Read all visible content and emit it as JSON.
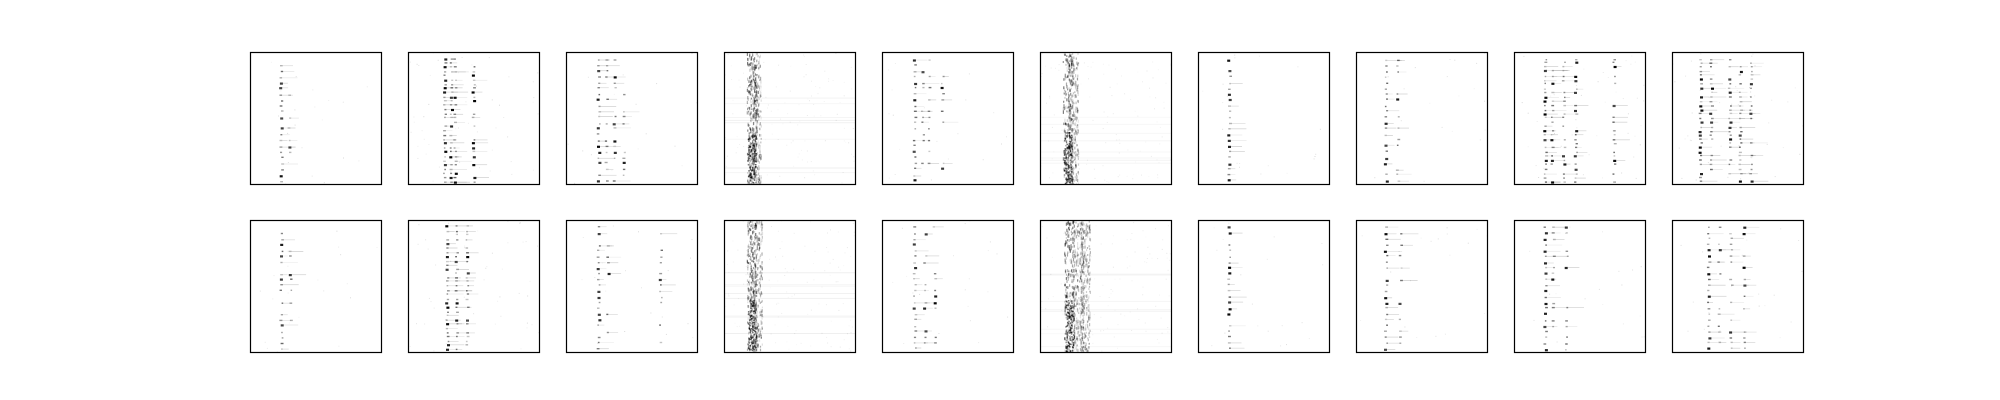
{
  "figure": {
    "rows": 2,
    "cols": 10,
    "background": "#ffffff",
    "frame_color": "#000000",
    "ink_color": "#000000"
  },
  "panels": [
    {
      "row": 0,
      "col": 0,
      "style": "sparse",
      "columns": [
        0.24,
        0.3
      ]
    },
    {
      "row": 0,
      "col": 1,
      "style": "dense",
      "columns": [
        0.28,
        0.33,
        0.36,
        0.5
      ]
    },
    {
      "row": 0,
      "col": 2,
      "style": "sparse",
      "columns": [
        0.25,
        0.31,
        0.37,
        0.44
      ]
    },
    {
      "row": 0,
      "col": 3,
      "style": "diffuse",
      "columns": [
        0.21,
        0.24
      ]
    },
    {
      "row": 0,
      "col": 4,
      "style": "sparse",
      "columns": [
        0.25,
        0.31,
        0.36,
        0.46
      ]
    },
    {
      "row": 0,
      "col": 5,
      "style": "diffuse",
      "columns": [
        0.21,
        0.25
      ]
    },
    {
      "row": 0,
      "col": 6,
      "style": "sparse",
      "columns": [
        0.24
      ]
    },
    {
      "row": 0,
      "col": 7,
      "style": "sparse",
      "columns": [
        0.23,
        0.32
      ]
    },
    {
      "row": 0,
      "col": 8,
      "style": "dense",
      "columns": [
        0.24,
        0.29,
        0.38,
        0.47,
        0.76
      ]
    },
    {
      "row": 0,
      "col": 9,
      "style": "dense",
      "columns": [
        0.22,
        0.3,
        0.44,
        0.52,
        0.6
      ]
    },
    {
      "row": 1,
      "col": 0,
      "style": "sparse",
      "columns": [
        0.24,
        0.31
      ]
    },
    {
      "row": 1,
      "col": 1,
      "style": "dense",
      "columns": [
        0.3,
        0.37,
        0.45
      ]
    },
    {
      "row": 1,
      "col": 2,
      "style": "sparse",
      "columns": [
        0.25,
        0.32,
        0.72
      ]
    },
    {
      "row": 1,
      "col": 3,
      "style": "diffuse",
      "columns": [
        0.21,
        0.25
      ]
    },
    {
      "row": 1,
      "col": 4,
      "style": "sparse",
      "columns": [
        0.25,
        0.33,
        0.4
      ]
    },
    {
      "row": 1,
      "col": 5,
      "style": "diffuse",
      "columns": [
        0.22,
        0.29,
        0.34
      ]
    },
    {
      "row": 1,
      "col": 6,
      "style": "sparse",
      "columns": [
        0.24
      ]
    },
    {
      "row": 1,
      "col": 7,
      "style": "sparse",
      "columns": [
        0.23,
        0.34
      ]
    },
    {
      "row": 1,
      "col": 8,
      "style": "sparse",
      "columns": [
        0.24,
        0.3,
        0.4
      ]
    },
    {
      "row": 1,
      "col": 9,
      "style": "sparse",
      "columns": [
        0.28,
        0.36,
        0.45,
        0.55
      ]
    }
  ]
}
